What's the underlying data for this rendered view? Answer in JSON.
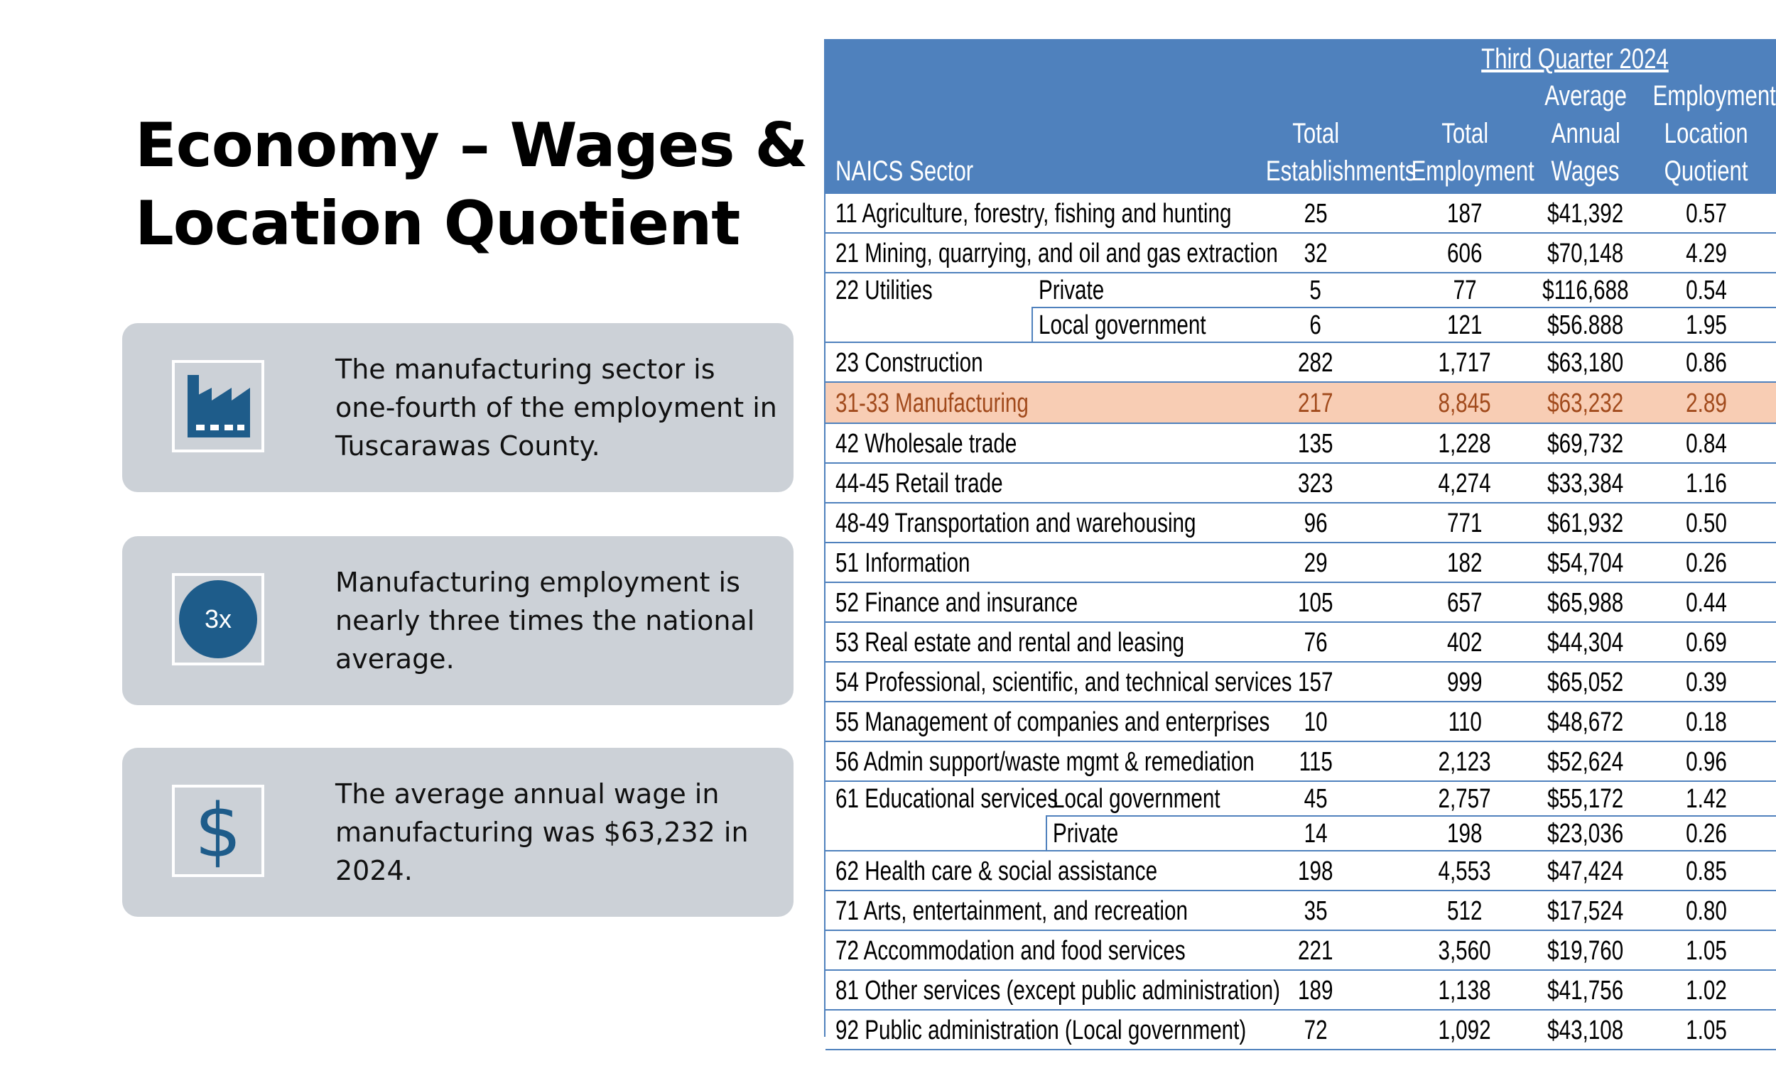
{
  "title": [
    "Economy – Wages &",
    "Location Quotient"
  ],
  "cards": [
    {
      "icon": "factory-icon",
      "text": [
        "The manufacturing sector is",
        "one-fourth of the employment in",
        "Tuscarawas County."
      ]
    },
    {
      "icon": "3x-badge-icon",
      "badge": "3x",
      "text": [
        "Manufacturing employment is",
        "nearly three times the national",
        "average."
      ]
    },
    {
      "icon": "dollar-icon",
      "symbol": "$",
      "text": [
        "The average annual wage in",
        "manufacturing was $63,232 in",
        "2024."
      ]
    }
  ],
  "colors": {
    "header_bg": "#4f81bd",
    "highlight": "#f8cdb4",
    "icon_blue": "#1e5c8a",
    "card_bg": "#ccd1d7"
  },
  "table": {
    "period": "Third Quarter 2024",
    "headers": {
      "sector": "NAICS Sector",
      "establishments": [
        "Total",
        "Establishments"
      ],
      "employment": [
        "Total",
        "Employment"
      ],
      "wages": [
        "Average",
        "Annual",
        "Wages"
      ],
      "lq": [
        "Employment",
        "Location",
        "Quotient"
      ]
    },
    "rows": [
      {
        "sector": "11 Agriculture, forestry, fishing and hunting",
        "sub": "",
        "est": "25",
        "emp": "187",
        "wages": "$41,392",
        "lq": "0.57"
      },
      {
        "sector": "21 Mining, quarrying, and oil and gas extraction",
        "sub": "",
        "est": "32",
        "emp": "606",
        "wages": "$70,148",
        "lq": "4.29"
      },
      {
        "sector": "22 Utilities",
        "sub": "Private",
        "est": "5",
        "emp": "77",
        "wages": "$116,688",
        "lq": "0.54"
      },
      {
        "sector": "",
        "sub": "Local government",
        "est": "6",
        "emp": "121",
        "wages": "$56.888",
        "lq": "1.95"
      },
      {
        "sector": "23 Construction",
        "sub": "",
        "est": "282",
        "emp": "1,717",
        "wages": "$63,180",
        "lq": "0.86"
      },
      {
        "sector": "31-33 Manufacturing",
        "sub": "",
        "est": "217",
        "emp": "8,845",
        "wages": "$63,232",
        "lq": "2.89",
        "highlight": true
      },
      {
        "sector": "42 Wholesale trade",
        "sub": "",
        "est": "135",
        "emp": "1,228",
        "wages": "$69,732",
        "lq": "0.84"
      },
      {
        "sector": "44-45 Retail trade",
        "sub": "",
        "est": "323",
        "emp": "4,274",
        "wages": "$33,384",
        "lq": "1.16"
      },
      {
        "sector": "48-49 Transportation and warehousing",
        "sub": "",
        "est": "96",
        "emp": "771",
        "wages": "$61,932",
        "lq": "0.50"
      },
      {
        "sector": "51 Information",
        "sub": "",
        "est": "29",
        "emp": "182",
        "wages": "$54,704",
        "lq": "0.26"
      },
      {
        "sector": "52 Finance and insurance",
        "sub": "",
        "est": "105",
        "emp": "657",
        "wages": "$65,988",
        "lq": "0.44"
      },
      {
        "sector": "53 Real estate and rental and leasing",
        "sub": "",
        "est": "76",
        "emp": "402",
        "wages": "$44,304",
        "lq": "0.69"
      },
      {
        "sector": "54 Professional, scientific, and technical services",
        "sub": "",
        "est": "157",
        "emp": "999",
        "wages": "$65,052",
        "lq": "0.39"
      },
      {
        "sector": "55 Management of companies and enterprises",
        "sub": "",
        "est": "10",
        "emp": "110",
        "wages": "$48,672",
        "lq": "0.18"
      },
      {
        "sector": "56 Admin support/waste mgmt & remediation",
        "sub": "",
        "est": "115",
        "emp": "2,123",
        "wages": "$52,624",
        "lq": "0.96"
      },
      {
        "sector": "61 Educational services",
        "sub": "Local government",
        "est": "45",
        "emp": "2,757",
        "wages": "$55,172",
        "lq": "1.42"
      },
      {
        "sector": "",
        "sub": "Private",
        "est": "14",
        "emp": "198",
        "wages": "$23,036",
        "lq": "0.26"
      },
      {
        "sector": "62 Health care & social assistance",
        "sub": "",
        "est": "198",
        "emp": "4,553",
        "wages": "$47,424",
        "lq": "0.85"
      },
      {
        "sector": "71 Arts, entertainment, and recreation",
        "sub": "",
        "est": "35",
        "emp": "512",
        "wages": "$17,524",
        "lq": "0.80"
      },
      {
        "sector": "72 Accommodation and food services",
        "sub": "",
        "est": "221",
        "emp": "3,560",
        "wages": "$19,760",
        "lq": "1.05"
      },
      {
        "sector": "81 Other services (except public administration)",
        "sub": "",
        "est": "189",
        "emp": "1,138",
        "wages": "$41,756",
        "lq": "1.02"
      },
      {
        "sector": "92 Public administration (Local government)",
        "sub": "",
        "est": "72",
        "emp": "1,092",
        "wages": "$43,108",
        "lq": "1.05"
      }
    ]
  }
}
